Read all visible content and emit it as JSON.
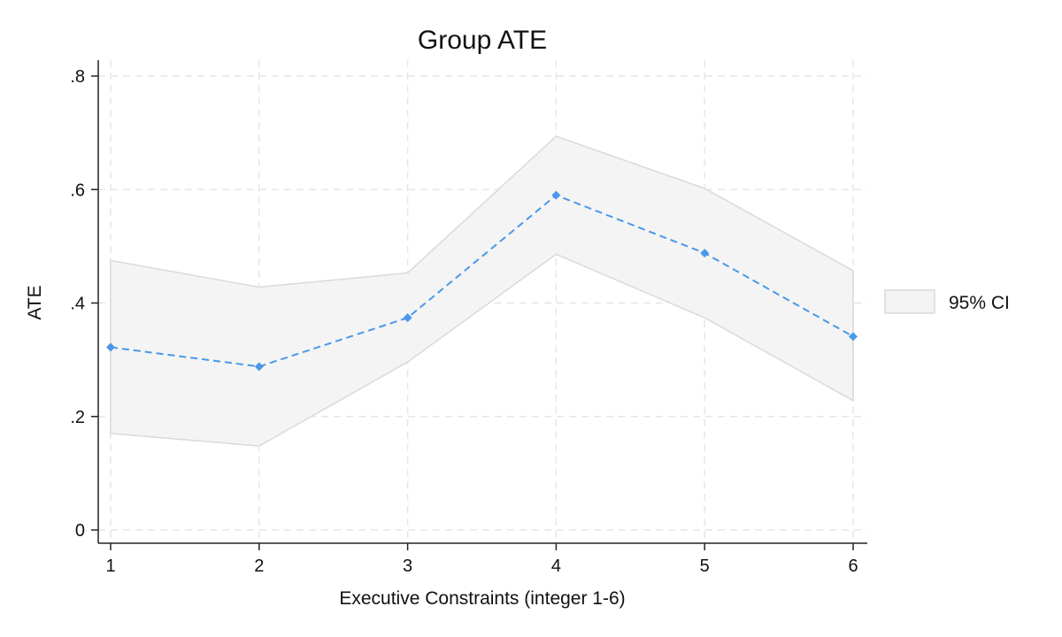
{
  "chart_data": {
    "type": "line",
    "title": "Group ATE",
    "xlabel": "Executive Constraints (integer 1-6)",
    "ylabel": "ATE",
    "x": [
      1,
      2,
      3,
      4,
      5,
      6
    ],
    "xticks": [
      "1",
      "2",
      "3",
      "4",
      "5",
      "6"
    ],
    "yticks": [
      0,
      0.2,
      0.4,
      0.6,
      0.8
    ],
    "ytick_labels": [
      "0",
      ".2",
      ".4",
      ".6",
      ".8"
    ],
    "xlim": [
      1,
      6
    ],
    "ylim": [
      0,
      0.8
    ],
    "grid": true,
    "legend_position": "right",
    "series": [
      {
        "kind": "point",
        "values": [
          0.322,
          0.288,
          0.374,
          0.59,
          0.488,
          0.341
        ],
        "color": "#4a98e8"
      },
      {
        "kind": "band",
        "name": "95% CI",
        "lower": [
          0.17,
          0.148,
          0.296,
          0.486,
          0.374,
          0.228
        ],
        "upper": [
          0.475,
          0.428,
          0.453,
          0.694,
          0.602,
          0.457
        ],
        "color": "#f4f4f4"
      }
    ]
  }
}
